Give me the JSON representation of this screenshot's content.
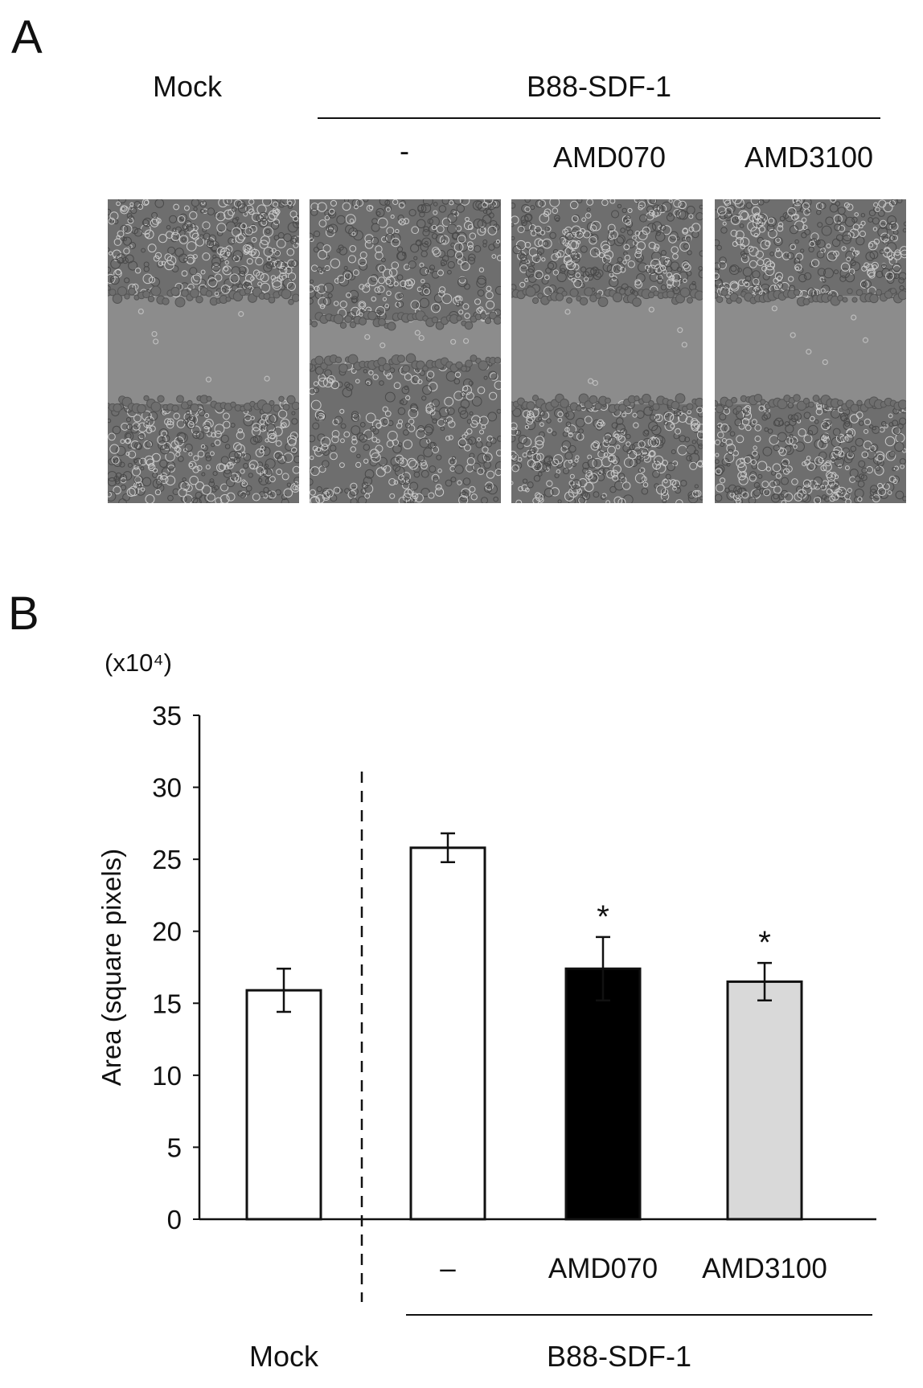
{
  "panel_a": {
    "label": "A",
    "headers": {
      "mock": "Mock",
      "group": "B88-SDF-1",
      "lanes": [
        "-",
        "AMD070",
        "AMD3100"
      ]
    },
    "images": [
      {
        "name": "Mock",
        "gap": "wide"
      },
      {
        "name": "-",
        "gap": "narrow"
      },
      {
        "name": "AMD070",
        "gap": "wide"
      },
      {
        "name": "AMD3100",
        "gap": "wide"
      }
    ],
    "colors": {
      "gap": "#8c8c8c",
      "cells": "#6e6e6e",
      "cell_highlight": "#c9c9c9"
    }
  },
  "panel_b": {
    "label": "B",
    "group_label": "B88-SDF-1",
    "mock_label": "Mock",
    "chart_data": {
      "type": "bar",
      "categories": [
        "Mock",
        "–",
        "AMD070",
        "AMD3100"
      ],
      "values": [
        15.9,
        25.8,
        17.4,
        16.5
      ],
      "errors": [
        1.5,
        1.0,
        2.2,
        1.3
      ],
      "bar_colors": [
        "#ffffff",
        "#ffffff",
        "#000000",
        "#d9d9d9"
      ],
      "significance": [
        "",
        "",
        "*",
        "*"
      ],
      "ylabel": "Area (square pixels)",
      "yscale_label": "(x10⁴)",
      "ylim": [
        0,
        35
      ],
      "yticks": [
        0,
        5,
        10,
        15,
        20,
        25,
        30,
        35
      ],
      "grid": false,
      "divider_after_category": 0
    }
  }
}
